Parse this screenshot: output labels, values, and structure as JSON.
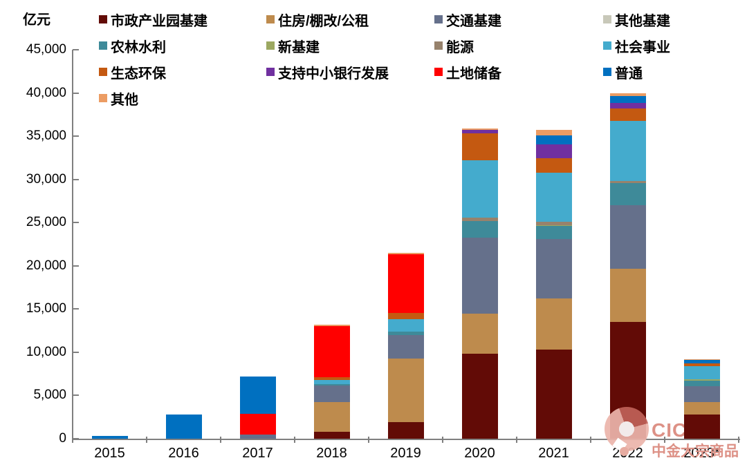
{
  "unit_label": "亿元",
  "watermark": {
    "brand": "CIC",
    "subbrand": "中金大宗商品",
    "color": "#DD9186"
  },
  "axis": {
    "line_color": "#7F7F7F",
    "text_color": "#000000"
  },
  "chart_data": {
    "type": "bar",
    "stacked": true,
    "title": "",
    "xlabel": "",
    "ylabel": "亿元",
    "ylim": [
      0,
      45000
    ],
    "ytick_step": 5000,
    "grid": false,
    "legend_position": "top",
    "categories": [
      "2015",
      "2016",
      "2017",
      "2018",
      "2019",
      "2020",
      "2021",
      "2022",
      "2023*"
    ],
    "series": [
      {
        "name": "市政产业园基建",
        "color": "#620B06",
        "values": [
          0,
          0,
          0,
          800,
          1900,
          9800,
          10300,
          13500,
          2800
        ]
      },
      {
        "name": "住房/棚改/公租",
        "color": "#BE8B4D",
        "values": [
          0,
          0,
          0,
          3450,
          7400,
          4650,
          5900,
          6200,
          1450
        ]
      },
      {
        "name": "交通基建",
        "color": "#65708B",
        "values": [
          0,
          0,
          450,
          1900,
          2700,
          8800,
          6900,
          7300,
          1850
        ]
      },
      {
        "name": "其他基建",
        "color": "#C8C8B9",
        "values": [
          0,
          0,
          0,
          0,
          0,
          0,
          0,
          0,
          0
        ]
      },
      {
        "name": "农林水利",
        "color": "#3E8A99",
        "values": [
          0,
          0,
          0,
          150,
          400,
          1900,
          1500,
          2550,
          650
        ]
      },
      {
        "name": "新基建",
        "color": "#9CA861",
        "values": [
          0,
          0,
          0,
          0,
          0,
          0,
          130,
          0,
          130
        ]
      },
      {
        "name": "能源",
        "color": "#97826C",
        "values": [
          0,
          0,
          0,
          0,
          0,
          430,
          330,
          270,
          0
        ]
      },
      {
        "name": "社会事业",
        "color": "#44ABCD",
        "values": [
          0,
          0,
          0,
          530,
          1400,
          6650,
          5700,
          6950,
          1550
        ]
      },
      {
        "name": "生态环保",
        "color": "#C45911",
        "values": [
          0,
          0,
          0,
          320,
          720,
          3100,
          1700,
          1430,
          290
        ]
      },
      {
        "name": "支持中小银行发展",
        "color": "#7030A0",
        "values": [
          0,
          0,
          0,
          0,
          0,
          380,
          1600,
          630,
          0
        ]
      },
      {
        "name": "土地储备",
        "color": "#FF0000",
        "values": [
          0,
          0,
          2400,
          5900,
          6850,
          0,
          0,
          0,
          0
        ]
      },
      {
        "name": "普通",
        "color": "#0070C0",
        "values": [
          300,
          2800,
          4350,
          0,
          0,
          0,
          1050,
          800,
          390
        ]
      },
      {
        "name": "其他",
        "color": "#EC9C63",
        "values": [
          0,
          0,
          0,
          100,
          130,
          160,
          620,
          330,
          90
        ]
      }
    ]
  }
}
